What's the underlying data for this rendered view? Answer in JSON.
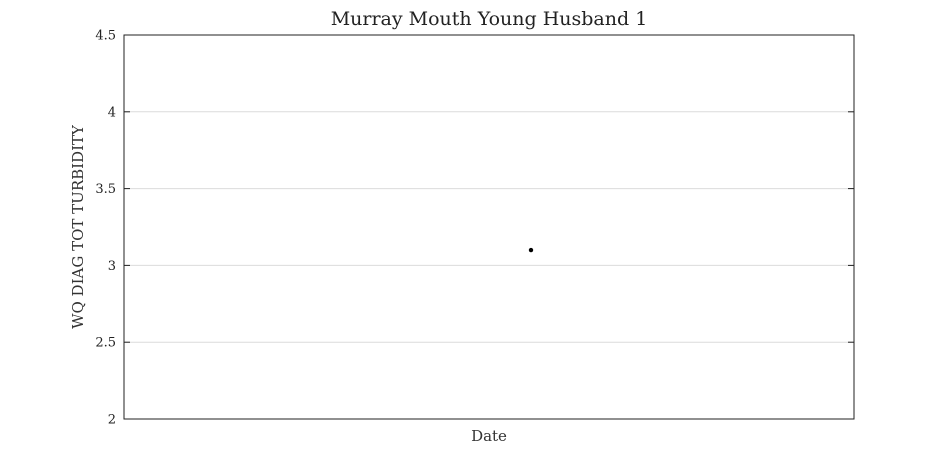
{
  "chart_data": {
    "type": "scatter",
    "title": "Murray Mouth Young Husband 1",
    "xlabel": "Date",
    "ylabel": "WQ DIAG TOT TURBIDITY",
    "ylim": [
      2,
      4.5
    ],
    "yticks": [
      2,
      2.5,
      3,
      3.5,
      4,
      4.5
    ],
    "ytick_labels": [
      "2",
      "2.5",
      "3",
      "3.5",
      "4",
      "4.5"
    ],
    "grid": true,
    "series": [
      {
        "points": [
          {
            "y": 3.1
          }
        ],
        "color": "#000000"
      }
    ]
  }
}
